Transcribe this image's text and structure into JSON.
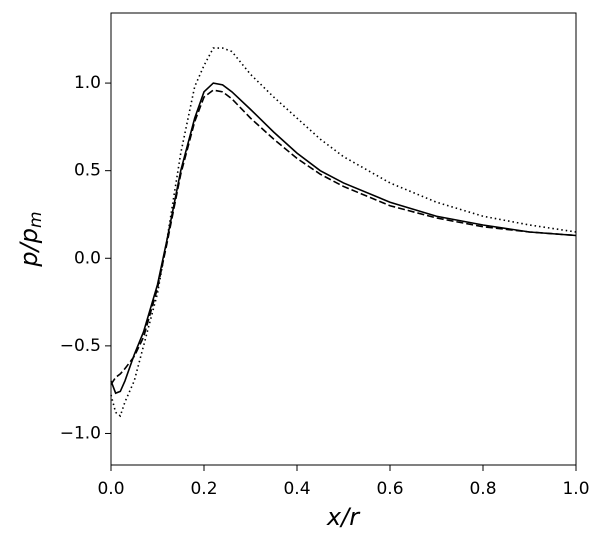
{
  "chart_data": {
    "type": "line",
    "xlabel": "x/r",
    "ylabel": {
      "main": "p/p",
      "sub": "m"
    },
    "x": [
      0,
      0.01,
      0.02,
      0.03,
      0.05,
      0.07,
      0.1,
      0.12,
      0.15,
      0.18,
      0.2,
      0.22,
      0.24,
      0.26,
      0.3,
      0.35,
      0.4,
      0.45,
      0.5,
      0.6,
      0.7,
      0.8,
      0.9,
      1.0
    ],
    "series": [
      {
        "color": "#000000",
        "dash": "solid",
        "values": [
          -0.7,
          -0.77,
          -0.76,
          -0.7,
          -0.55,
          -0.42,
          -0.15,
          0.1,
          0.5,
          0.8,
          0.95,
          1.0,
          0.99,
          0.95,
          0.85,
          0.72,
          0.6,
          0.5,
          0.43,
          0.32,
          0.24,
          0.19,
          0.15,
          0.13
        ]
      },
      {
        "color": "#000000",
        "dash": "dashed",
        "values": [
          -0.72,
          -0.68,
          -0.66,
          -0.63,
          -0.56,
          -0.45,
          -0.17,
          0.08,
          0.48,
          0.78,
          0.92,
          0.96,
          0.95,
          0.91,
          0.8,
          0.68,
          0.57,
          0.48,
          0.41,
          0.3,
          0.23,
          0.18,
          0.15,
          0.13
        ]
      },
      {
        "color": "#000000",
        "dash": "dotted",
        "values": [
          -0.78,
          -0.88,
          -0.9,
          -0.82,
          -0.7,
          -0.5,
          -0.2,
          0.1,
          0.6,
          0.98,
          1.1,
          1.2,
          1.2,
          1.18,
          1.05,
          0.92,
          0.8,
          0.68,
          0.58,
          0.43,
          0.32,
          0.24,
          0.19,
          0.15
        ]
      }
    ],
    "xlim": [
      0,
      1.0
    ],
    "ylim": [
      -1.18,
      1.4
    ],
    "xticks": [
      {
        "value": 0,
        "label": "0.0"
      },
      {
        "value": 0.2,
        "label": "0.2"
      },
      {
        "value": 0.4,
        "label": "0.4"
      },
      {
        "value": 0.6,
        "label": "0.6"
      },
      {
        "value": 0.8,
        "label": "0.8"
      },
      {
        "value": 1.0,
        "label": "1.0"
      }
    ],
    "yticks": [
      {
        "value": -1,
        "label": "−1.0"
      },
      {
        "value": -0.5,
        "label": "−0.5"
      },
      {
        "value": 0,
        "label": "0.0"
      },
      {
        "value": 0.5,
        "label": "0.5"
      },
      {
        "value": 1,
        "label": "1.0"
      }
    ],
    "grid": false
  }
}
